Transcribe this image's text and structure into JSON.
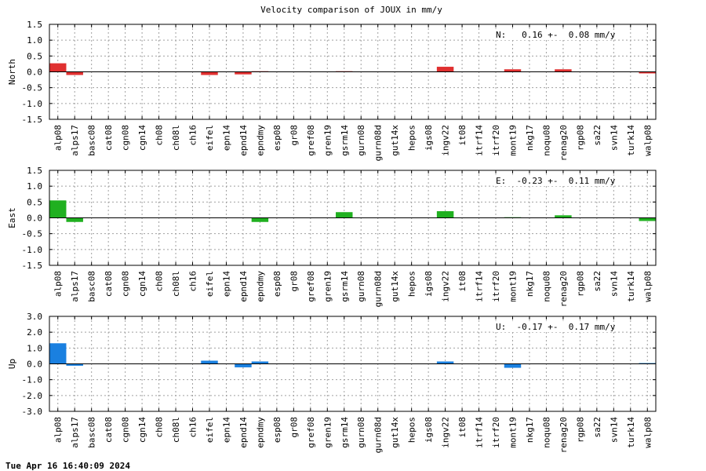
{
  "title": "Velocity comparison of JOUX in mm/y",
  "footer": "Tue Apr 16 16:40:09 2024",
  "chart_data": {
    "type": "bar",
    "categories": [
      "alp08",
      "alps17",
      "basc08",
      "cat08",
      "cgn08",
      "cgn14",
      "ch08",
      "ch08l",
      "ch16",
      "eifel",
      "epn14",
      "epnd14",
      "epndmy",
      "esp08",
      "gr08",
      "gref08",
      "gren19",
      "gsrm14",
      "gurn08",
      "gurn08d",
      "gut14x",
      "hepos",
      "igs08",
      "ingv22",
      "it08",
      "itrf14",
      "itrf20",
      "mont19",
      "nkg17",
      "noqu08",
      "renag20",
      "rgp08",
      "sa22",
      "svn14",
      "turk14",
      "walp08"
    ],
    "grid": true,
    "panels": [
      {
        "ylabel": "North",
        "annotation": "N:   0.16 +-  0.08 mm/y",
        "color": "#e03030",
        "ylim": [
          -1.5,
          1.5
        ],
        "ticks": [
          "1.5",
          "1.0",
          "0.5",
          "0.0",
          "-0.5",
          "-1.0",
          "-1.5"
        ],
        "values": [
          0.27,
          -0.1,
          0,
          0,
          0,
          0,
          0,
          0,
          0,
          -0.1,
          0,
          -0.08,
          0.02,
          0,
          0,
          0,
          0,
          0.02,
          0,
          0,
          0,
          0,
          0,
          0.16,
          0,
          0,
          0,
          0.08,
          0,
          0,
          0.08,
          0,
          0,
          0,
          0,
          -0.05
        ]
      },
      {
        "ylabel": "East",
        "annotation": "E:  -0.23 +-  0.11 mm/y",
        "color": "#20b020",
        "ylim": [
          -1.5,
          1.5
        ],
        "ticks": [
          "1.5",
          "1.0",
          "0.5",
          "0.0",
          "-0.5",
          "-1.0",
          "-1.5"
        ],
        "values": [
          0.55,
          -0.13,
          0,
          0,
          0,
          0,
          0,
          0,
          0,
          0,
          0,
          0,
          -0.13,
          0,
          0,
          0,
          0,
          0.18,
          0,
          0,
          0,
          0,
          0,
          0.21,
          0,
          0,
          0,
          0.02,
          0,
          0,
          0.08,
          0,
          0,
          0,
          0,
          -0.1
        ]
      },
      {
        "ylabel": "Up",
        "annotation": "U:  -0.17 +-  0.17 mm/y",
        "color": "#1a80e0",
        "ylim": [
          -3.0,
          3.0
        ],
        "ticks": [
          "3.0",
          "2.0",
          "1.0",
          "0.0",
          "-1.0",
          "-2.0",
          "-3.0"
        ],
        "values": [
          1.3,
          -0.12,
          0,
          0,
          0,
          0,
          0,
          0,
          0,
          0.2,
          0,
          -0.22,
          0.15,
          0,
          0,
          0,
          0,
          0,
          0,
          0,
          0,
          0,
          0,
          0.15,
          0,
          0,
          0,
          -0.25,
          0,
          0,
          0,
          0,
          0,
          0,
          0,
          0.05
        ]
      }
    ]
  }
}
